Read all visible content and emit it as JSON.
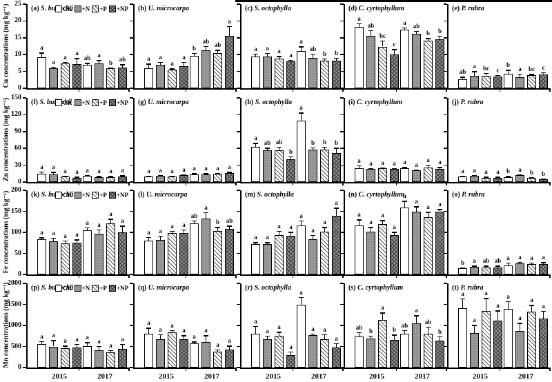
{
  "figure": {
    "colors": {
      "axis": "#000000",
      "gray_fill": "#9a9a9a",
      "dark_gray_fill": "#8f8f8f",
      "background": "#ffffff"
    },
    "legend": {
      "items": [
        {
          "label": "CK",
          "pattern": "white-open"
        },
        {
          "label": "+N",
          "pattern": "gray-dots"
        },
        {
          "label": "+P",
          "pattern": "diagonal-hatch"
        },
        {
          "label": "+NP",
          "pattern": "gray-crosshatch"
        }
      ]
    }
  },
  "chart_data": {
    "type": "bar",
    "treatments": [
      "CK",
      "+N",
      "+P",
      "+NP"
    ],
    "years": [
      "2015",
      "2017"
    ],
    "rows": [
      {
        "metal": "Cu",
        "ylabel": "Cu concentrations (mg kg⁻¹)",
        "ymax": 25,
        "yticks": [
          0,
          5,
          10,
          15,
          20,
          25
        ]
      },
      {
        "metal": "Zn",
        "ylabel": "Zn concentrations (mg kg⁻¹)",
        "ymax": 150,
        "yticks": [
          0,
          30,
          60,
          90,
          120,
          150
        ]
      },
      {
        "metal": "Fe",
        "ylabel": "Fe concentrations (mg kg⁻¹)",
        "ymax": 200,
        "yticks": [
          0,
          50,
          100,
          150,
          200
        ]
      },
      {
        "metal": "Mn",
        "ylabel": "Mn concentrations (mg kg⁻¹)",
        "ymax": 2000,
        "yticks": [
          0,
          500,
          1000,
          1500,
          2000
        ]
      }
    ],
    "panels": [
      {
        "id": "(a)",
        "species": "S. bullockii",
        "groups": [
          {
            "year": "2015",
            "values": [
              9.2,
              5.9,
              7.4,
              7.2
            ],
            "errors": [
              1.4,
              0.5,
              0.4,
              1.8
            ],
            "letters": [
              "a",
              "a",
              "a",
              "a"
            ]
          },
          {
            "year": "2017",
            "values": [
              7.0,
              7.4,
              5.9,
              6.2
            ],
            "errors": [
              0.5,
              1.0,
              0.3,
              0.9
            ],
            "letters": [
              "ab",
              "a",
              "b",
              "ab"
            ]
          }
        ]
      },
      {
        "id": "(b)",
        "species": "U. microcarpa",
        "groups": [
          {
            "year": "2015",
            "values": [
              5.9,
              7.0,
              5.5,
              6.5
            ],
            "errors": [
              1.4,
              0.8,
              0.4,
              1.3
            ],
            "letters": [
              "a",
              "a",
              "a",
              "a"
            ]
          },
          {
            "year": "2017",
            "values": [
              9.6,
              11.2,
              10.4,
              15.6
            ],
            "errors": [
              0.9,
              1.4,
              1.0,
              2.9
            ],
            "letters": [
              "b",
              "ab",
              "ab",
              "a"
            ]
          }
        ]
      },
      {
        "id": "(c)",
        "species": "S. octophylla",
        "groups": [
          {
            "year": "2015",
            "values": [
              9.5,
              9.4,
              8.9,
              8.0
            ],
            "errors": [
              0.8,
              1.1,
              0.7,
              0.5
            ],
            "letters": [
              "a",
              "a",
              "a",
              "a"
            ]
          },
          {
            "year": "2017",
            "values": [
              11.1,
              9.0,
              8.2,
              8.2
            ],
            "errors": [
              1.4,
              1.3,
              0.7,
              0.9
            ],
            "letters": [
              "a",
              "ab",
              "b",
              "b"
            ]
          }
        ]
      },
      {
        "id": "(d)",
        "species": "C. cyrtophyllum",
        "groups": [
          {
            "year": "2015",
            "values": [
              18.3,
              15.5,
              12.4,
              10.0
            ],
            "errors": [
              1.0,
              1.8,
              1.8,
              1.6
            ],
            "letters": [
              "a",
              "ab",
              "bc",
              "c"
            ]
          },
          {
            "year": "2017",
            "values": [
              17.4,
              16.2,
              14.2,
              14.5
            ],
            "errors": [
              0.7,
              0.9,
              0.7,
              1.1
            ],
            "letters": [
              "a",
              "ab",
              "b",
              "b"
            ]
          }
        ]
      },
      {
        "id": "(e)",
        "species": "P. rubra",
        "groups": [
          {
            "year": "2015",
            "values": [
              2.7,
              3.6,
              3.7,
              3.4
            ],
            "errors": [
              0.7,
              1.5,
              0.9,
              0.5
            ],
            "letters": [
              "ab",
              "a",
              "bc",
              "c"
            ]
          },
          {
            "year": "2017",
            "values": [
              4.4,
              3.3,
              3.8,
              4.2
            ],
            "errors": [
              1.1,
              1.1,
              0.5,
              0.6
            ],
            "letters": [
              "b",
              "a",
              "bc",
              "c"
            ]
          }
        ]
      },
      {
        "id": "(f)",
        "species": "S. bullockii",
        "groups": [
          {
            "year": "2015",
            "values": [
              15,
              13,
              10,
              8
            ],
            "errors": [
              4,
              5,
              1.5,
              1.5
            ],
            "letters": [
              "a",
              "a",
              "a",
              "a"
            ]
          },
          {
            "year": "2017",
            "values": [
              11,
              9,
              9,
              10
            ],
            "errors": [
              1.5,
              1.5,
              1.5,
              2
            ],
            "letters": [
              "a",
              "a",
              "a",
              "a"
            ]
          }
        ]
      },
      {
        "id": "(g)",
        "species": "U. microcarpa",
        "groups": [
          {
            "year": "2015",
            "values": [
              10,
              11,
              10,
              12
            ],
            "errors": [
              1.5,
              1.5,
              1.5,
              2
            ],
            "letters": [
              "a",
              "a",
              "a",
              "a"
            ]
          },
          {
            "year": "2017",
            "values": [
              14,
              14,
              15,
              16
            ],
            "errors": [
              1.5,
              1.5,
              1.5,
              2
            ],
            "letters": [
              "a",
              "a",
              "a",
              "a"
            ]
          }
        ]
      },
      {
        "id": "(h)",
        "species": "S. octophylla",
        "groups": [
          {
            "year": "2015",
            "values": [
              63,
              56,
              56,
              40
            ],
            "errors": [
              7,
              5,
              7,
              6
            ],
            "letters": [
              "a",
              "ab",
              "ab",
              "b"
            ]
          },
          {
            "year": "2017",
            "values": [
              109,
              58,
              58,
              52
            ],
            "errors": [
              15,
              4,
              5,
              9
            ],
            "letters": [
              "a",
              "b",
              "b",
              "b"
            ]
          }
        ]
      },
      {
        "id": "(i)",
        "species": "C. cyrtophyllum",
        "groups": [
          {
            "year": "2015",
            "values": [
              25,
              23,
              24,
              23
            ],
            "errors": [
              5,
              2,
              2,
              2
            ],
            "letters": [
              "a",
              "a",
              "a",
              "a"
            ]
          },
          {
            "year": "2017",
            "values": [
              24,
              21,
              26,
              23
            ],
            "errors": [
              3,
              1.5,
              5,
              4
            ],
            "letters": [
              "a",
              "a",
              "a",
              "a"
            ]
          }
        ]
      },
      {
        "id": "(j)",
        "species": "P. rubra",
        "groups": [
          {
            "year": "2015",
            "values": [
              10,
              11,
              8,
              8
            ],
            "errors": [
              1.5,
              1.5,
              1.5,
              1.5
            ],
            "letters": [
              "a",
              "a",
              "a",
              "a"
            ]
          },
          {
            "year": "2017",
            "values": [
              9,
              12,
              7,
              5
            ],
            "errors": [
              1.5,
              1.5,
              1.5,
              1.5
            ],
            "letters": [
              "b",
              "a",
              "b",
              "b"
            ]
          }
        ]
      },
      {
        "id": "(k)",
        "species": "S. bullockii",
        "groups": [
          {
            "year": "2015",
            "values": [
              84,
              79,
              74,
              76
            ],
            "errors": [
              4,
              8,
              7,
              7
            ],
            "letters": [
              "a",
              "a",
              "a",
              "a"
            ]
          },
          {
            "year": "2017",
            "values": [
              105,
              97,
              121,
              100
            ],
            "errors": [
              7,
              10,
              11,
              16
            ],
            "letters": [
              "a",
              "a",
              "a",
              "a"
            ]
          }
        ]
      },
      {
        "id": "(l)",
        "species": "U. microcarpa",
        "groups": [
          {
            "year": "2015",
            "values": [
              81,
              82,
              99,
              98
            ],
            "errors": [
              8,
              10,
              5,
              9
            ],
            "letters": [
              "a",
              "a",
              "a",
              "a"
            ]
          },
          {
            "year": "2017",
            "values": [
              121,
              132,
              104,
              109
            ],
            "errors": [
              7,
              16,
              9,
              7
            ],
            "letters": [
              "ab",
              "a",
              "b",
              "ab"
            ]
          }
        ]
      },
      {
        "id": "(m)",
        "species": "S. octophylla",
        "groups": [
          {
            "year": "2015",
            "values": [
              72,
              72,
              94,
              92
            ],
            "errors": [
              5,
              5,
              10,
              9
            ],
            "letters": [
              "a",
              "a",
              "a",
              "a"
            ]
          },
          {
            "year": "2017",
            "values": [
              117,
              84,
              102,
              140
            ],
            "errors": [
              11,
              10,
              11,
              19
            ],
            "letters": [
              "a",
              "a",
              "a",
              "a"
            ]
          }
        ]
      },
      {
        "id": "(n)",
        "species": "C. cyrtophyllum",
        "groups": [
          {
            "year": "2015",
            "values": [
              116,
              102,
              120,
              94
            ],
            "errors": [
              15,
              11,
              9,
              7
            ],
            "letters": [
              "a",
              "a",
              "a",
              "a"
            ]
          },
          {
            "year": "2017",
            "values": [
              159,
              149,
              136,
              150
            ],
            "errors": [
              16,
              13,
              13,
              5
            ],
            "letters": [
              "a",
              "a",
              "a",
              "a"
            ]
          }
        ]
      },
      {
        "id": "(o)",
        "species": "P. rubra",
        "groups": [
          {
            "year": "2015",
            "values": [
              15,
              18,
              17,
              17
            ],
            "errors": [
              2,
              3,
              4,
              4
            ],
            "letters": [
              "b",
              "a",
              "ab",
              "ab"
            ]
          },
          {
            "year": "2017",
            "values": [
              22,
              27,
              25,
              25
            ],
            "errors": [
              6,
              3,
              3,
              4
            ],
            "letters": [
              "a",
              "a",
              "a",
              "a"
            ]
          }
        ]
      },
      {
        "id": "(p)",
        "species": "S. bullockii",
        "groups": [
          {
            "year": "2015",
            "values": [
              560,
              500,
              460,
              470
            ],
            "errors": [
              70,
              150,
              60,
              90
            ],
            "letters": [
              "a",
              "a",
              "a",
              "a"
            ]
          },
          {
            "year": "2017",
            "values": [
              510,
              410,
              360,
              450
            ],
            "errors": [
              90,
              100,
              50,
              110
            ],
            "letters": [
              "a",
              "a",
              "a",
              "a"
            ]
          }
        ]
      },
      {
        "id": "(q)",
        "species": "U. microcarpa",
        "groups": [
          {
            "year": "2015",
            "values": [
              800,
              670,
              840,
              670
            ],
            "errors": [
              150,
              120,
              50,
              100
            ],
            "letters": [
              "a",
              "a",
              "a",
              "a"
            ]
          },
          {
            "year": "2017",
            "values": [
              570,
              610,
              380,
              430
            ],
            "errors": [
              50,
              160,
              50,
              90
            ],
            "letters": [
              "a",
              "a",
              "a",
              "a"
            ]
          }
        ]
      },
      {
        "id": "(r)",
        "species": "S. octophylla",
        "groups": [
          {
            "year": "2015",
            "values": [
              800,
              670,
              750,
              300
            ],
            "errors": [
              190,
              90,
              100,
              80
            ],
            "letters": [
              "a",
              "a",
              "a",
              "a"
            ]
          },
          {
            "year": "2017",
            "values": [
              1490,
              770,
              670,
              480
            ],
            "errors": [
              190,
              40,
              120,
              100
            ],
            "letters": [
              "a",
              "a",
              "a",
              "a"
            ]
          }
        ]
      },
      {
        "id": "(s)",
        "species": "C. cyrtophyllum",
        "groups": [
          {
            "year": "2015",
            "values": [
              740,
              690,
              1130,
              650
            ],
            "errors": [
              100,
              70,
              180,
              130
            ],
            "letters": [
              "ab",
              "b",
              "a",
              "b"
            ]
          },
          {
            "year": "2017",
            "values": [
              800,
              1050,
              800,
              640
            ],
            "errors": [
              90,
              190,
              170,
              100
            ],
            "letters": [
              "ab",
              "a",
              "ab",
              "b"
            ]
          }
        ]
      },
      {
        "id": "(t)",
        "species": "P. rubra",
        "groups": [
          {
            "year": "2015",
            "values": [
              1410,
              820,
              1350,
              1120
            ],
            "errors": [
              230,
              190,
              300,
              240
            ],
            "letters": [
              "a",
              "a",
              "a",
              "a"
            ]
          },
          {
            "year": "2017",
            "values": [
              1390,
              870,
              1330,
              1160
            ],
            "errors": [
              190,
              190,
              160,
              190
            ],
            "letters": [
              "a",
              "a",
              "a",
              "a"
            ]
          }
        ]
      }
    ]
  }
}
